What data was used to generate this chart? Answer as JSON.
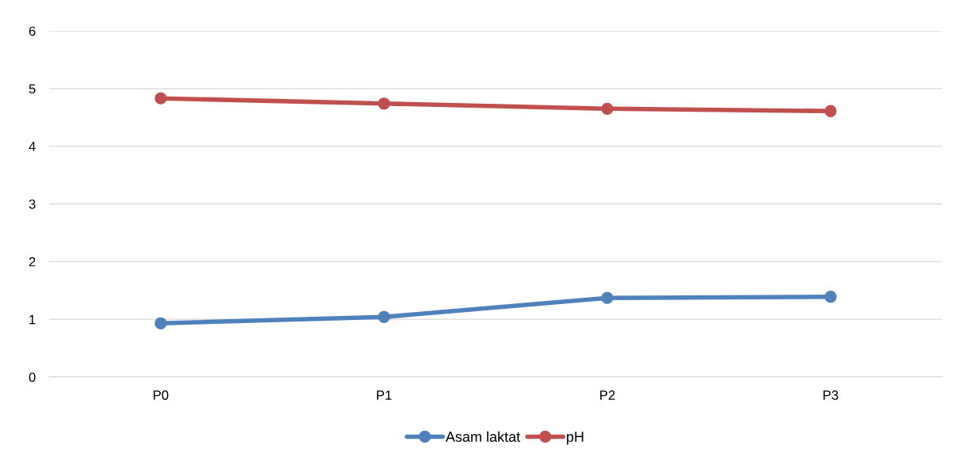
{
  "chart_data": {
    "type": "line",
    "categories": [
      "P0",
      "P1",
      "P2",
      "P3"
    ],
    "series": [
      {
        "name": "Asam laktat",
        "color": "#4f81bd",
        "values": [
          0.93,
          1.04,
          1.37,
          1.39
        ]
      },
      {
        "name": "pH",
        "color": "#c0504d",
        "values": [
          4.83,
          4.74,
          4.65,
          4.61
        ]
      }
    ],
    "ylim": [
      0,
      6
    ],
    "yticks": [
      0,
      1,
      2,
      3,
      4,
      5,
      6
    ],
    "grid": "y",
    "legend": "bottom",
    "marker": "circle",
    "line_style": "solid"
  }
}
